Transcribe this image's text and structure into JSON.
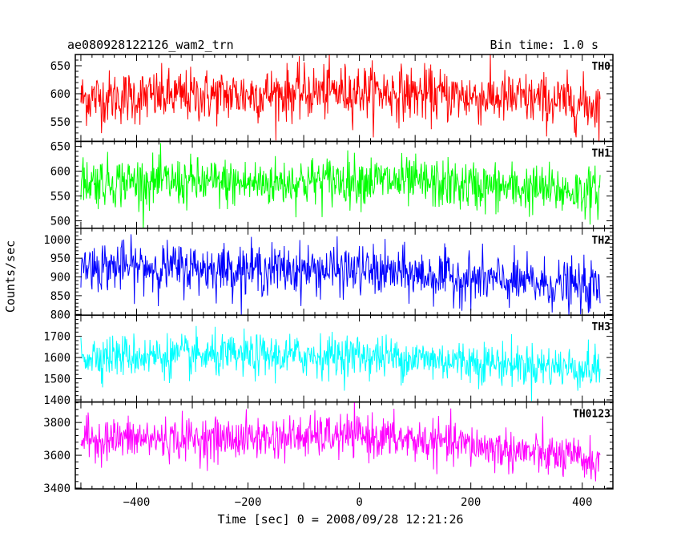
{
  "title_left": "ae080928122126_wam2_trn",
  "title_right": "Bin time: 1.0 s",
  "chart_data": {
    "type": "line",
    "xlabel": "Time [sec] 0 = 2008/09/28 12:21:26",
    "ylabel": "Counts/sec",
    "xlim": [
      -510,
      455
    ],
    "x_ticks": [
      -400,
      -200,
      0,
      200,
      400
    ],
    "x_tick_labels": [
      "−400",
      "−200",
      "0",
      "200",
      "400"
    ],
    "x_range_data": [
      -500,
      432
    ],
    "bin_time_s": 1.0,
    "panels": [
      {
        "name": "TH0",
        "color": "#ff0000",
        "ylim": [
          515,
          670
        ],
        "y_ticks": [
          550,
          600,
          650
        ],
        "y_tick_labels": [
          "550",
          "600",
          "650"
        ],
        "trend": [
          {
            "x": -500,
            "y": 592
          },
          {
            "x": -250,
            "y": 597
          },
          {
            "x": 0,
            "y": 605
          },
          {
            "x": 150,
            "y": 597
          },
          {
            "x": 300,
            "y": 590
          },
          {
            "x": 432,
            "y": 580
          }
        ],
        "spread": 24
      },
      {
        "name": "TH1",
        "color": "#00ff00",
        "ylim": [
          485,
          660
        ],
        "y_ticks": [
          500,
          550,
          600,
          650
        ],
        "y_tick_labels": [
          "500",
          "550",
          "600",
          "650"
        ],
        "trend": [
          {
            "x": -500,
            "y": 580
          },
          {
            "x": -200,
            "y": 575
          },
          {
            "x": 0,
            "y": 583
          },
          {
            "x": 200,
            "y": 570
          },
          {
            "x": 432,
            "y": 557
          }
        ],
        "spread": 25
      },
      {
        "name": "TH2",
        "color": "#0000ff",
        "ylim": [
          798,
          1030
        ],
        "y_ticks": [
          800,
          850,
          900,
          950,
          1000
        ],
        "y_tick_labels": [
          "800",
          "850",
          "900",
          "950",
          "1000"
        ],
        "trend": [
          {
            "x": -500,
            "y": 930
          },
          {
            "x": -250,
            "y": 922
          },
          {
            "x": 0,
            "y": 917
          },
          {
            "x": 200,
            "y": 895
          },
          {
            "x": 432,
            "y": 870
          }
        ],
        "spread": 33
      },
      {
        "name": "TH3",
        "color": "#00ffff",
        "ylim": [
          1390,
          1800
        ],
        "y_ticks": [
          1400,
          1500,
          1600,
          1700
        ],
        "y_tick_labels": [
          "1400",
          "1500",
          "1600",
          "1700"
        ],
        "trend": [
          {
            "x": -500,
            "y": 1610
          },
          {
            "x": -250,
            "y": 1605
          },
          {
            "x": 0,
            "y": 1610
          },
          {
            "x": 200,
            "y": 1580
          },
          {
            "x": 432,
            "y": 1545
          }
        ],
        "spread": 50
      },
      {
        "name": "TH0123",
        "color": "#ff00ff",
        "ylim": [
          3395,
          3925
        ],
        "y_ticks": [
          3400,
          3600,
          3800
        ],
        "y_tick_labels": [
          "3400",
          "3600",
          "3800"
        ],
        "trend": [
          {
            "x": -500,
            "y": 3700
          },
          {
            "x": -250,
            "y": 3700
          },
          {
            "x": 0,
            "y": 3720
          },
          {
            "x": 200,
            "y": 3660
          },
          {
            "x": 432,
            "y": 3560
          }
        ],
        "spread": 65
      }
    ]
  }
}
